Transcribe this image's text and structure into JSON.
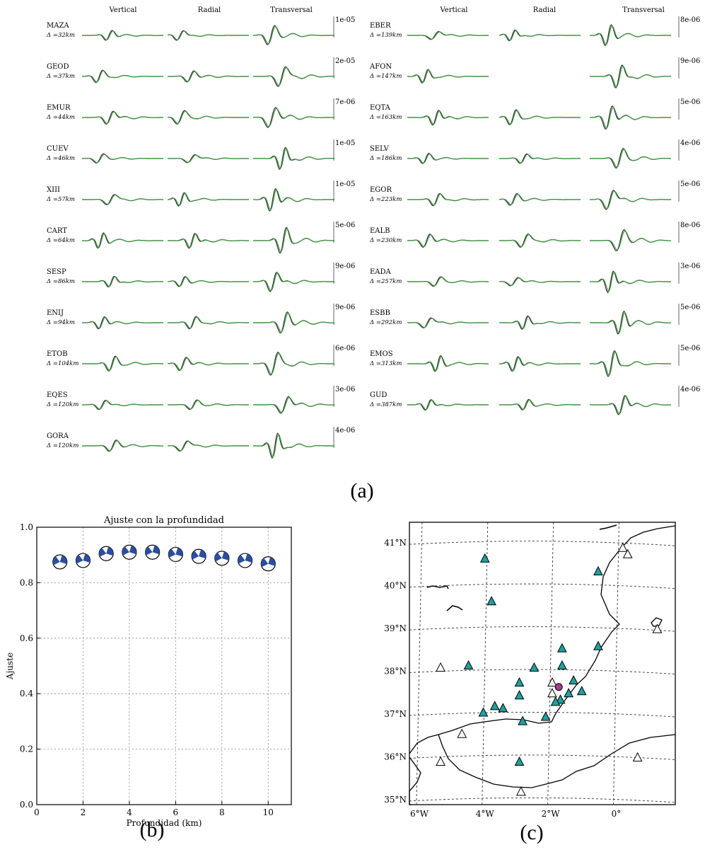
{
  "panel_a": {
    "label": "(a)",
    "components": [
      "Vertical",
      "Radial",
      "Transversal"
    ],
    "left": [
      {
        "station": "MAZA",
        "dist": "Δ =32km",
        "scale": "1e-05"
      },
      {
        "station": "GEOD",
        "dist": "Δ =37km",
        "scale": "2e-05"
      },
      {
        "station": "EMUR",
        "dist": "Δ =44km",
        "scale": "7e-06"
      },
      {
        "station": "CUEV",
        "dist": "Δ =46km",
        "scale": "1e-05"
      },
      {
        "station": "XIII",
        "dist": "Δ =57km",
        "scale": "1e-05"
      },
      {
        "station": "CART",
        "dist": "Δ =64km",
        "scale": "5e-06"
      },
      {
        "station": "SESP",
        "dist": "Δ =86km",
        "scale": "9e-06"
      },
      {
        "station": "ENIJ",
        "dist": "Δ =94km",
        "scale": "9e-06"
      },
      {
        "station": "ETOB",
        "dist": "Δ =104km",
        "scale": "6e-06"
      },
      {
        "station": "EQES",
        "dist": "Δ =120km",
        "scale": "3e-06"
      },
      {
        "station": "GORA",
        "dist": "Δ =120km",
        "scale": "4e-06"
      }
    ],
    "right": [
      {
        "station": "EBER",
        "dist": "Δ =139km",
        "scale": "8e-06"
      },
      {
        "station": "AFON",
        "dist": "Δ =147km",
        "scale": "9e-06"
      },
      {
        "station": "EQTA",
        "dist": "Δ =163km",
        "scale": "5e-06"
      },
      {
        "station": "SELV",
        "dist": "Δ =186km",
        "scale": "4e-06"
      },
      {
        "station": "EGOR",
        "dist": "Δ =223km",
        "scale": "5e-06"
      },
      {
        "station": "EALB",
        "dist": "Δ =230km",
        "scale": "8e-06"
      },
      {
        "station": "EADA",
        "dist": "Δ =257km",
        "scale": "3e-06"
      },
      {
        "station": "ESBB",
        "dist": "Δ =292km",
        "scale": "5e-06"
      },
      {
        "station": "EMOS",
        "dist": "Δ =313km",
        "scale": "5e-06"
      },
      {
        "station": "GUD",
        "dist": "Δ =387km",
        "scale": "4e-06"
      }
    ],
    "colors": {
      "observed": "#333333",
      "synthetic": "#3c9a3c"
    }
  },
  "chart_data": [
    {
      "type": "scatter",
      "title": "Ajuste con la profundidad",
      "xlabel": "Profundidad (km)",
      "ylabel": "Ajuste",
      "xlim": [
        0,
        11
      ],
      "ylim": [
        0.0,
        1.0
      ],
      "xticks": [
        "0",
        "2",
        "4",
        "6",
        "8",
        "10"
      ],
      "yticks": [
        "0.0",
        "0.2",
        "0.4",
        "0.6",
        "0.8",
        "1.0"
      ],
      "grid": true,
      "marker": "focal-mechanism-beachball",
      "x": [
        1,
        2,
        3,
        4,
        5,
        6,
        7,
        8,
        9,
        10
      ],
      "y": [
        0.875,
        0.88,
        0.905,
        0.91,
        0.91,
        0.902,
        0.895,
        0.888,
        0.88,
        0.868
      ],
      "colors": {
        "beachball": "#2b4ea0"
      },
      "label": "(b)"
    },
    {
      "type": "scatter",
      "label": "(c)",
      "xticks": [
        "6°W",
        "4°W",
        "2°W",
        "0°"
      ],
      "yticks": [
        "35°N",
        "36°N",
        "37°N",
        "38°N",
        "39°N",
        "40°N",
        "41°N"
      ],
      "lon_range": [
        -6.3,
        1.8
      ],
      "lat_range": [
        34.85,
        41.45
      ],
      "grid": true,
      "series": [
        {
          "marker": "triangle-filled",
          "color": "#20a0a0",
          "points": [
            [
              -4.0,
              40.6
            ],
            [
              -3.8,
              39.6
            ],
            [
              -4.5,
              38.1
            ],
            [
              -2.95,
              37.7
            ],
            [
              -2.95,
              37.4
            ],
            [
              -3.7,
              37.15
            ],
            [
              -3.45,
              37.1
            ],
            [
              -4.05,
              37.0
            ],
            [
              -2.85,
              36.8
            ],
            [
              -2.5,
              38.05
            ],
            [
              -1.65,
              38.5
            ],
            [
              -1.65,
              38.1
            ],
            [
              -0.55,
              38.55
            ],
            [
              -0.55,
              40.3
            ],
            [
              -1.3,
              37.75
            ],
            [
              -1.05,
              37.5
            ],
            [
              -1.45,
              37.45
            ],
            [
              -1.7,
              37.3
            ],
            [
              -1.85,
              37.25
            ],
            [
              -2.15,
              36.9
            ],
            [
              -2.95,
              35.85
            ]
          ]
        },
        {
          "marker": "triangle-open",
          "color": "#ffffff",
          "points": [
            [
              -5.35,
              38.05
            ],
            [
              -4.7,
              36.5
            ],
            [
              -5.35,
              35.85
            ],
            [
              -2.9,
              35.15
            ],
            [
              -1.95,
              37.7
            ],
            [
              -1.95,
              37.45
            ],
            [
              0.2,
              40.85
            ],
            [
              0.35,
              40.7
            ],
            [
              1.25,
              38.95
            ],
            [
              0.65,
              35.95
            ]
          ]
        },
        {
          "marker": "circle",
          "color": "#a63a9a",
          "points": [
            [
              -1.75,
              37.6
            ]
          ]
        }
      ]
    }
  ]
}
